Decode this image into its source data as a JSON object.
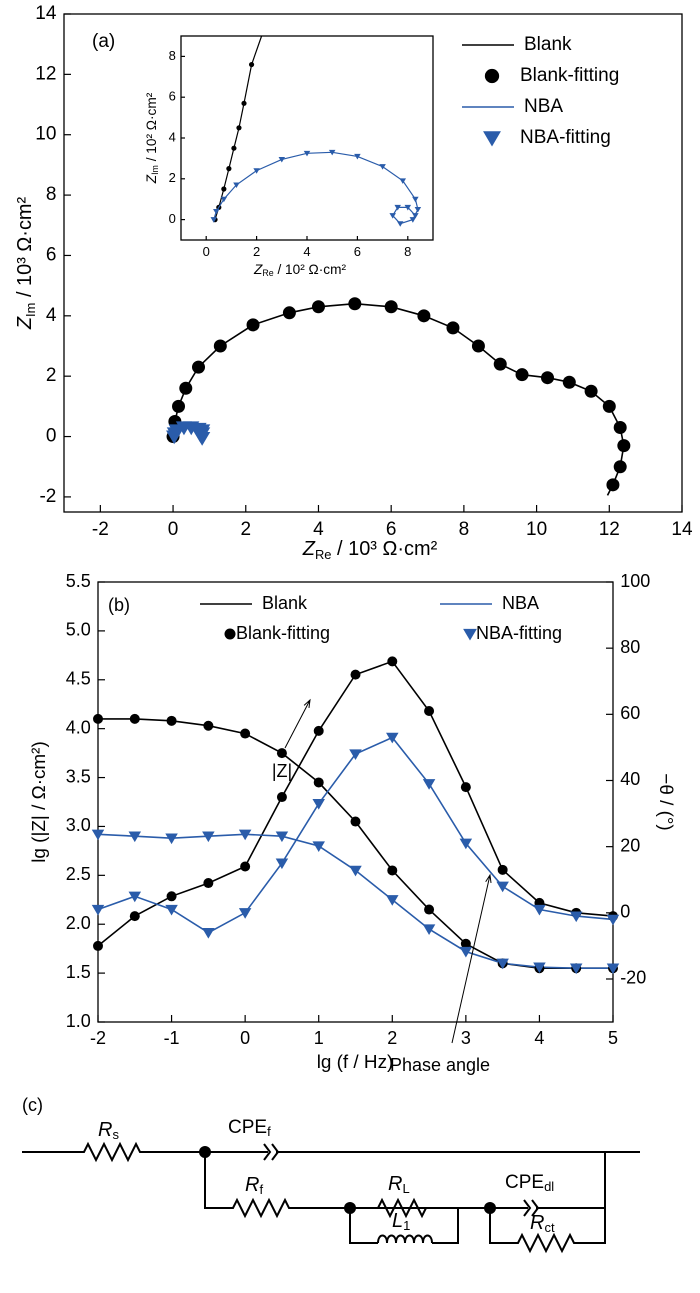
{
  "chart_data": [
    {
      "type": "line",
      "label": "(a)",
      "xlabel": {
        "var": "Z",
        "sub": "Re",
        "text": " / 10³ Ω·cm²"
      },
      "ylabel": {
        "var": "Z",
        "sub": "Im",
        "text": " / 10³ Ω·cm²"
      },
      "xlim": [
        -3,
        14
      ],
      "xticks": [
        -2,
        0,
        2,
        4,
        6,
        8,
        10,
        12,
        14
      ],
      "ylim": [
        -2.5,
        14
      ],
      "yticks": [
        -2,
        0,
        2,
        4,
        6,
        8,
        10,
        12,
        14
      ],
      "legend": "upper right",
      "series": [
        {
          "name": "Blank",
          "style": "line",
          "color": "#000000",
          "x": [
            0,
            0.05,
            0.15,
            0.35,
            0.7,
            1.3,
            2.2,
            3.2,
            4,
            5,
            6,
            6.9,
            7.7,
            8.4,
            9,
            9.6,
            10.3,
            10.9,
            11.5,
            12,
            12.3,
            12.4,
            12.3,
            12.1,
            11.95
          ],
          "values": [
            0,
            0.5,
            1,
            1.6,
            2.3,
            3,
            3.7,
            4.1,
            4.3,
            4.4,
            4.3,
            4,
            3.6,
            3,
            2.4,
            2.05,
            1.95,
            1.8,
            1.5,
            1,
            0.3,
            -0.3,
            -1,
            -1.6,
            -1.95
          ]
        },
        {
          "name": "Blank-fitting",
          "style": "circle",
          "color": "#000000",
          "x": [
            0,
            0.05,
            0.15,
            0.35,
            0.7,
            1.3,
            2.2,
            3.2,
            4,
            5,
            6,
            6.9,
            7.7,
            8.4,
            9,
            9.6,
            10.3,
            10.9,
            11.5,
            12,
            12.3,
            12.4,
            12.3,
            12.1
          ],
          "values": [
            0,
            0.5,
            1,
            1.6,
            2.3,
            3,
            3.7,
            4.1,
            4.3,
            4.4,
            4.3,
            4,
            3.6,
            3,
            2.4,
            2.05,
            1.95,
            1.8,
            1.5,
            1,
            0.3,
            -0.3,
            -1,
            -1.6
          ]
        },
        {
          "name": "NBA",
          "style": "line",
          "color": "#2a5caa",
          "x": [
            0.03,
            0.05,
            0.1,
            0.3,
            0.5,
            0.7,
            0.8,
            0.8,
            0.75,
            0.8
          ],
          "values": [
            0,
            0.1,
            0.2,
            0.3,
            0.3,
            0.25,
            0.1,
            -0.05,
            0.05,
            0.2
          ]
        },
        {
          "name": "NBA-fitting",
          "style": "triangle",
          "color": "#2a5caa",
          "x": [
            0.03,
            0.05,
            0.1,
            0.3,
            0.5,
            0.7,
            0.8,
            0.8,
            0.75,
            0.8
          ],
          "values": [
            0,
            0.1,
            0.2,
            0.3,
            0.3,
            0.25,
            0.1,
            -0.05,
            0.05,
            0.2
          ]
        }
      ]
    },
    {
      "type": "line",
      "xlabel": {
        "var": "Z",
        "sub": "Re",
        "text": " / 10² Ω·cm²"
      },
      "ylabel": {
        "var": "Z",
        "sub": "Im",
        "text": " / 10² Ω·cm²"
      },
      "xlim": [
        -1,
        9
      ],
      "xticks": [
        0,
        2,
        4,
        6,
        8
      ],
      "ylim": [
        -1,
        9
      ],
      "yticks": [
        0,
        2,
        4,
        6,
        8
      ],
      "series": [
        {
          "style": "line",
          "color": "#000000",
          "x": [
            0.35,
            0.5,
            0.7,
            0.9,
            1.1,
            1.3,
            1.5,
            1.8,
            2.2
          ],
          "values": [
            0,
            0.6,
            1.5,
            2.5,
            3.5,
            4.5,
            5.7,
            7.6,
            9
          ]
        },
        {
          "style": "circle",
          "color": "#000000",
          "x": [
            0.35,
            0.5,
            0.7,
            0.9,
            1.1,
            1.3,
            1.5,
            1.8
          ],
          "values": [
            0,
            0.6,
            1.5,
            2.5,
            3.5,
            4.5,
            5.7,
            7.6
          ]
        },
        {
          "style": "line",
          "color": "#2a5caa",
          "x": [
            0.3,
            0.4,
            0.7,
            1.2,
            2,
            3,
            4,
            5,
            6,
            7,
            7.8,
            8.3,
            8.4,
            8.2,
            7.7,
            7.4,
            7.6,
            8,
            8.3
          ],
          "values": [
            0,
            0.4,
            1,
            1.7,
            2.4,
            2.95,
            3.25,
            3.3,
            3.1,
            2.6,
            1.9,
            1,
            0.5,
            0,
            -0.2,
            0.2,
            0.6,
            0.6,
            0.2
          ]
        },
        {
          "style": "triangle",
          "color": "#2a5caa",
          "x": [
            0.3,
            0.4,
            0.7,
            1.2,
            2,
            3,
            4,
            5,
            6,
            7,
            7.8,
            8.3,
            8.4,
            8.2,
            7.7,
            7.4,
            7.6,
            8,
            8.3
          ],
          "values": [
            0,
            0.4,
            1,
            1.7,
            2.4,
            2.95,
            3.25,
            3.3,
            3.1,
            2.6,
            1.9,
            1,
            0.5,
            0,
            -0.2,
            0.2,
            0.6,
            0.6,
            0.2
          ]
        }
      ]
    },
    {
      "type": "line",
      "label": "(b)",
      "xlabel": "lg (f / Hz)",
      "ylabel": "lg (|Z| / Ω·cm²)",
      "y2label": "−θ / (°)",
      "x": [
        -2,
        -1.5,
        -1,
        -0.5,
        0,
        0.5,
        1,
        1.5,
        2,
        2.5,
        3,
        3.5,
        4,
        4.5,
        5
      ],
      "xlim": [
        -2,
        5
      ],
      "xticks": [
        -2,
        -1,
        0,
        1,
        2,
        3,
        4,
        5
      ],
      "ylim": [
        1,
        5.5
      ],
      "yticks": [
        {
          "value": 1,
          "label": "1.0"
        },
        1.5,
        {
          "value": 2,
          "label": "2.0"
        },
        2.5,
        {
          "value": 3,
          "label": "3.0"
        },
        3.5,
        {
          "value": 4,
          "label": "4.0"
        },
        4.5,
        {
          "value": 5,
          "label": "5.0"
        },
        5.5
      ],
      "y2lim": [
        -33,
        100
      ],
      "y2ticks": [
        -20,
        0,
        20,
        40,
        60,
        80,
        100
      ],
      "legend": "upper center",
      "annotations": [
        "|Z|",
        "Phase angle"
      ],
      "series": [
        {
          "name": "Blank",
          "style": "line",
          "color": "#000000",
          "values": [
            4.1,
            4.1,
            4.08,
            4.03,
            3.95,
            3.75,
            3.45,
            3.05,
            2.55,
            2.15,
            1.8,
            1.6,
            1.55,
            1.55,
            1.55
          ],
          "phase": [
            -10,
            -1,
            5,
            9,
            14,
            35,
            55,
            72,
            76,
            61,
            38,
            13,
            3,
            0,
            -1
          ]
        },
        {
          "name": "NBA",
          "style": "line",
          "color": "#2a5caa",
          "values": [
            2.92,
            2.9,
            2.88,
            2.9,
            2.92,
            2.9,
            2.8,
            2.55,
            2.25,
            1.95,
            1.72,
            1.6,
            1.56,
            1.55,
            1.55
          ],
          "phase": [
            1,
            5,
            1,
            -6,
            0,
            15,
            33,
            48,
            53,
            39,
            21,
            8,
            1,
            -1,
            -2
          ]
        },
        {
          "name": "Blank-fitting",
          "style": "circle",
          "color": "#000000",
          "values": [
            4.1,
            4.1,
            4.08,
            4.03,
            3.95,
            3.75,
            3.45,
            3.05,
            2.55,
            2.15,
            1.8,
            1.6,
            1.55,
            1.55,
            1.55
          ],
          "phase": [
            -10,
            -1,
            5,
            9,
            14,
            35,
            55,
            72,
            76,
            61,
            38,
            13,
            3,
            0,
            -1
          ]
        },
        {
          "name": "NBA-fitting",
          "style": "triangle",
          "color": "#2a5caa",
          "values": [
            2.92,
            2.9,
            2.88,
            2.9,
            2.92,
            2.9,
            2.8,
            2.55,
            2.25,
            1.95,
            1.72,
            1.6,
            1.56,
            1.55,
            1.55
          ],
          "phase": [
            1,
            5,
            1,
            -6,
            0,
            15,
            33,
            48,
            53,
            39,
            21,
            8,
            1,
            -1,
            -2
          ]
        }
      ]
    }
  ],
  "circuit": {
    "label": "(c)",
    "elements": [
      {
        "name": "R",
        "sub": "s"
      },
      {
        "name": "CPE",
        "sub": "f"
      },
      {
        "name": "R",
        "sub": "f"
      },
      {
        "name": "R",
        "sub": "L"
      },
      {
        "name": "L",
        "sub": "1"
      },
      {
        "name": "CPE",
        "sub": "dl"
      },
      {
        "name": "R",
        "sub": "ct"
      }
    ]
  }
}
